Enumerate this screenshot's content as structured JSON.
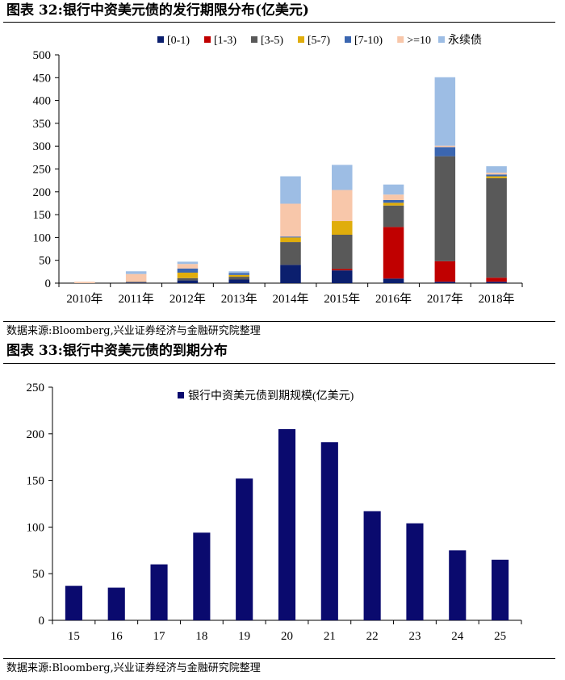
{
  "figure1": {
    "title": "图表 32:银行中资美元债的发行期限分布(亿美元)",
    "source": "数据来源:Bloomberg,兴业证券经济与金融研究院整理"
  },
  "figure2": {
    "title": "图表 33:银行中资美元债的到期分布",
    "source": "数据来源:Bloomberg,兴业证券经济与金融研究院整理"
  },
  "colors": {
    "[0-1)": "#0b1f6e",
    "[1-3)": "#c00000",
    "[3-5)": "#595959",
    "[5-7)": "#e0ad0c",
    "[7-10)": "#3b66b0",
    ">=10": "#f8c7aa",
    "永续债": "#9dbde4",
    "maturity": "#0a0a6e"
  },
  "chart_data": [
    {
      "type": "bar",
      "stacked": true,
      "title": "",
      "xlabel": "",
      "ylabel": "",
      "ylim": [
        0,
        500
      ],
      "yticks": [
        0,
        50,
        100,
        150,
        200,
        250,
        300,
        350,
        400,
        450,
        500
      ],
      "grid": false,
      "legend": "top",
      "categories": [
        "2010年",
        "2011年",
        "2012年",
        "2013年",
        "2014年",
        "2015年",
        "2016年",
        "2017年",
        "2018年"
      ],
      "series": [
        {
          "name": "[0-1)",
          "values": [
            0,
            1,
            6,
            8,
            40,
            28,
            10,
            3,
            3
          ]
        },
        {
          "name": "[1-3)",
          "values": [
            0,
            0,
            0,
            0,
            0,
            3,
            113,
            45,
            9
          ]
        },
        {
          "name": "[3-5)",
          "values": [
            0,
            2,
            5,
            6,
            50,
            75,
            47,
            230,
            218
          ]
        },
        {
          "name": "[5-7)",
          "values": [
            0,
            0,
            12,
            4,
            10,
            30,
            6,
            0,
            4
          ]
        },
        {
          "name": "[7-10)",
          "values": [
            0,
            0,
            9,
            4,
            2,
            0,
            6,
            20,
            4
          ]
        },
        {
          "name": ">=10",
          "values": [
            3,
            17,
            10,
            0,
            72,
            68,
            12,
            3,
            4
          ]
        },
        {
          "name": "永续债",
          "values": [
            0,
            6,
            5,
            4,
            60,
            55,
            22,
            150,
            14
          ]
        }
      ]
    },
    {
      "type": "bar",
      "title": "",
      "xlabel": "",
      "ylabel": "",
      "ylim": [
        0,
        250
      ],
      "yticks": [
        0,
        50,
        100,
        150,
        200,
        250
      ],
      "grid": false,
      "legend": "top",
      "categories": [
        "15",
        "16",
        "17",
        "18",
        "19",
        "20",
        "21",
        "22",
        "23",
        "24",
        "25"
      ],
      "series": [
        {
          "name": "银行中资美元债到期规模(亿美元)",
          "values": [
            37,
            35,
            60,
            94,
            152,
            205,
            191,
            117,
            104,
            75,
            65
          ]
        }
      ]
    }
  ]
}
